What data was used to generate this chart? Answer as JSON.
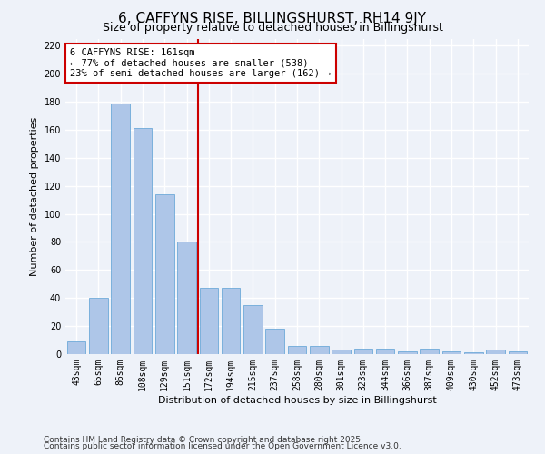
{
  "title1": "6, CAFFYNS RISE, BILLINGSHURST, RH14 9JY",
  "title2": "Size of property relative to detached houses in Billingshurst",
  "xlabel": "Distribution of detached houses by size in Billingshurst",
  "ylabel": "Number of detached properties",
  "categories": [
    "43sqm",
    "65sqm",
    "86sqm",
    "108sqm",
    "129sqm",
    "151sqm",
    "172sqm",
    "194sqm",
    "215sqm",
    "237sqm",
    "258sqm",
    "280sqm",
    "301sqm",
    "323sqm",
    "344sqm",
    "366sqm",
    "387sqm",
    "409sqm",
    "430sqm",
    "452sqm",
    "473sqm"
  ],
  "values": [
    9,
    40,
    179,
    161,
    114,
    80,
    47,
    47,
    35,
    18,
    6,
    6,
    3,
    4,
    4,
    2,
    4,
    2,
    1,
    3,
    2
  ],
  "bar_color": "#aec6e8",
  "bar_edge_color": "#5a9fd4",
  "red_line_x": 5.5,
  "annotation_text": "6 CAFFYNS RISE: 161sqm\n← 77% of detached houses are smaller (538)\n23% of semi-detached houses are larger (162) →",
  "annotation_box_color": "#ffffff",
  "annotation_box_edge": "#cc0000",
  "red_line_color": "#cc0000",
  "ylim": [
    0,
    225
  ],
  "yticks": [
    0,
    20,
    40,
    60,
    80,
    100,
    120,
    140,
    160,
    180,
    200,
    220
  ],
  "footer1": "Contains HM Land Registry data © Crown copyright and database right 2025.",
  "footer2": "Contains public sector information licensed under the Open Government Licence v3.0.",
  "background_color": "#eef2f9",
  "grid_color": "#ffffff",
  "title1_fontsize": 11,
  "title2_fontsize": 9,
  "tick_fontsize": 7,
  "footer_fontsize": 6.5,
  "ylabel_fontsize": 8,
  "xlabel_fontsize": 8
}
